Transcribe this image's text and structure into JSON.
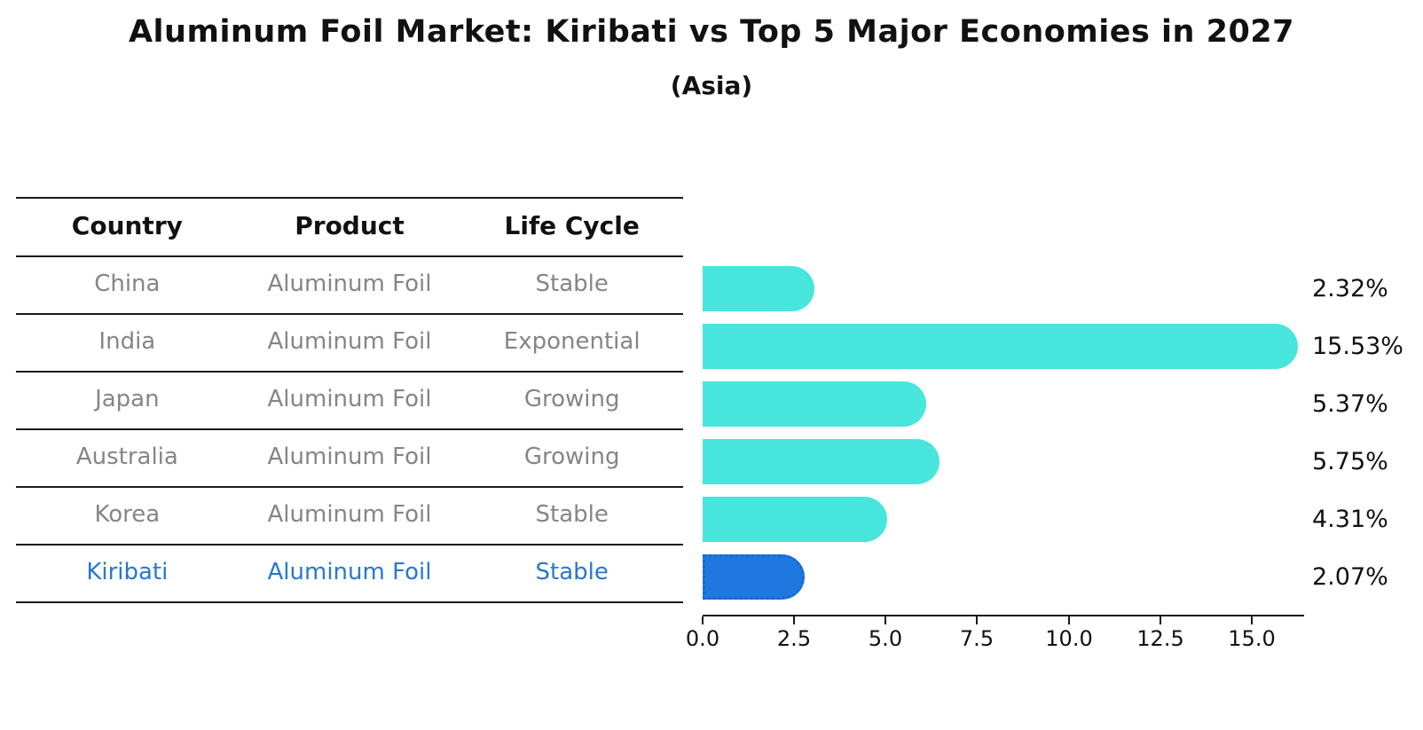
{
  "title": "Aluminum Foil Market: Kiribati vs Top 5 Major Economies in 2027",
  "subtitle": "(Asia)",
  "table": {
    "headers": [
      "Country",
      "Product",
      "Life Cycle"
    ],
    "rows": [
      {
        "country": "China",
        "product": "Aluminum Foil",
        "life_cycle": "Stable",
        "highlight": false
      },
      {
        "country": "India",
        "product": "Aluminum Foil",
        "life_cycle": "Exponential",
        "highlight": false
      },
      {
        "country": "Japan",
        "product": "Aluminum Foil",
        "life_cycle": "Growing",
        "highlight": false
      },
      {
        "country": "Australia",
        "product": "Aluminum Foil",
        "life_cycle": "Growing",
        "highlight": false
      },
      {
        "country": "Korea",
        "product": "Aluminum Foil",
        "life_cycle": "Stable",
        "highlight": false
      },
      {
        "country": "Kiribati",
        "product": "Aluminum Foil",
        "life_cycle": "Stable",
        "highlight": true
      }
    ]
  },
  "chart_data": {
    "type": "bar",
    "orientation": "horizontal",
    "title": "Aluminum Foil Market: Kiribati vs Top 5 Major Economies in 2027",
    "subtitle": "(Asia)",
    "categories": [
      "China",
      "India",
      "Japan",
      "Australia",
      "Korea",
      "Kiribati"
    ],
    "values": [
      2.32,
      15.53,
      5.37,
      5.75,
      4.31,
      2.07
    ],
    "value_labels": [
      "2.32%",
      "15.53%",
      "5.37%",
      "5.75%",
      "4.31%",
      "2.07%"
    ],
    "x_ticks": [
      "0.0",
      "2.5",
      "5.0",
      "7.5",
      "10.0",
      "12.5",
      "15.0"
    ],
    "x_tick_values": [
      0,
      2.5,
      5,
      7.5,
      10,
      12.5,
      15
    ],
    "xlim": [
      0,
      16.4
    ],
    "grid": false,
    "legend": false,
    "bar_color": "#48e5dc",
    "highlight_color": "#1f78df",
    "highlight_index": 5,
    "highlight_text_color": "#2878cf"
  }
}
